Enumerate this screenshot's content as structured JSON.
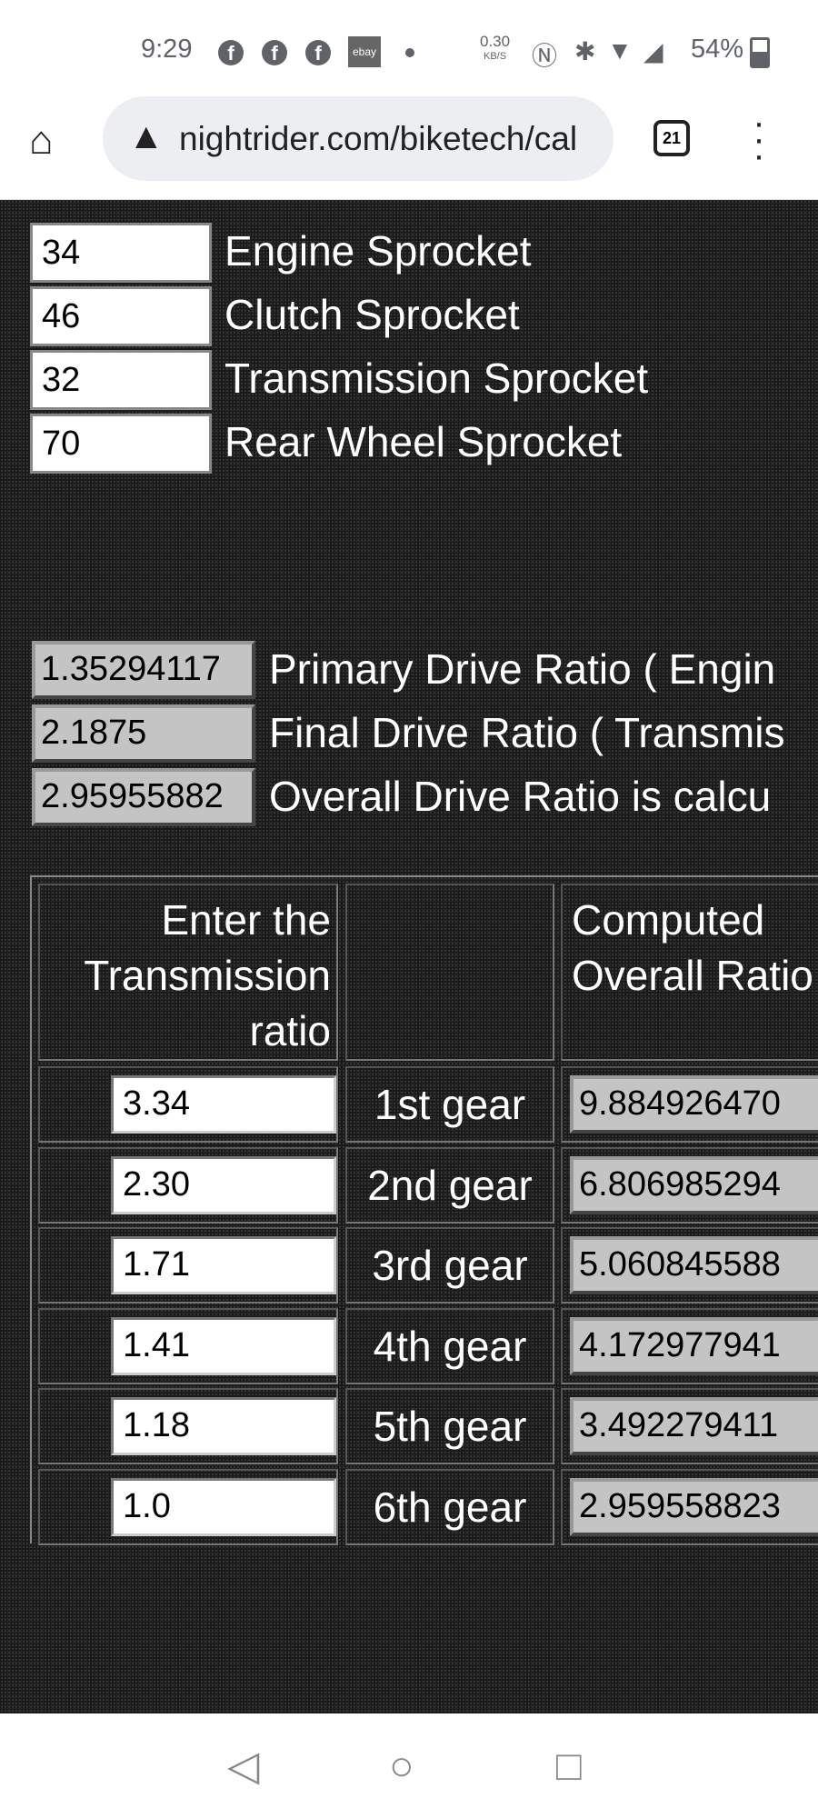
{
  "status_bar": {
    "time": "9:29",
    "ebay": "ebay",
    "speed": "0.30",
    "speed_unit": "KB/S",
    "battery": "54%"
  },
  "browser": {
    "url": "nightrider.com/biketech/cal",
    "tab_count": "21"
  },
  "sprockets": [
    {
      "value": "34",
      "label": "Engine Sprocket"
    },
    {
      "value": "46",
      "label": "Clutch Sprocket"
    },
    {
      "value": "32",
      "label": "Transmission Sprocket"
    },
    {
      "value": "70",
      "label": "Rear Wheel Sprocket"
    }
  ],
  "ratios": [
    {
      "value": "1.35294117",
      "label": "Primary Drive Ratio ( Engin"
    },
    {
      "value": "2.1875",
      "label": "Final Drive Ratio ( Transmis"
    },
    {
      "value": "2.95955882",
      "label": "Overall Drive Ratio is calcu"
    }
  ],
  "table": {
    "header_input": "Enter the Transmission ratio",
    "header_output": "Computed Overall Ratio",
    "rows": [
      {
        "ratio": "3.34",
        "gear": "1st gear",
        "overall": "9.884926470"
      },
      {
        "ratio": "2.30",
        "gear": "2nd gear",
        "overall": "6.806985294"
      },
      {
        "ratio": "1.71",
        "gear": "3rd gear",
        "overall": "5.060845588"
      },
      {
        "ratio": "1.41",
        "gear": "4th gear",
        "overall": "4.172977941"
      },
      {
        "ratio": "1.18",
        "gear": "5th gear",
        "overall": "3.492279411"
      },
      {
        "ratio": "1.0",
        "gear": "6th gear",
        "overall": "2.959558823"
      }
    ]
  }
}
